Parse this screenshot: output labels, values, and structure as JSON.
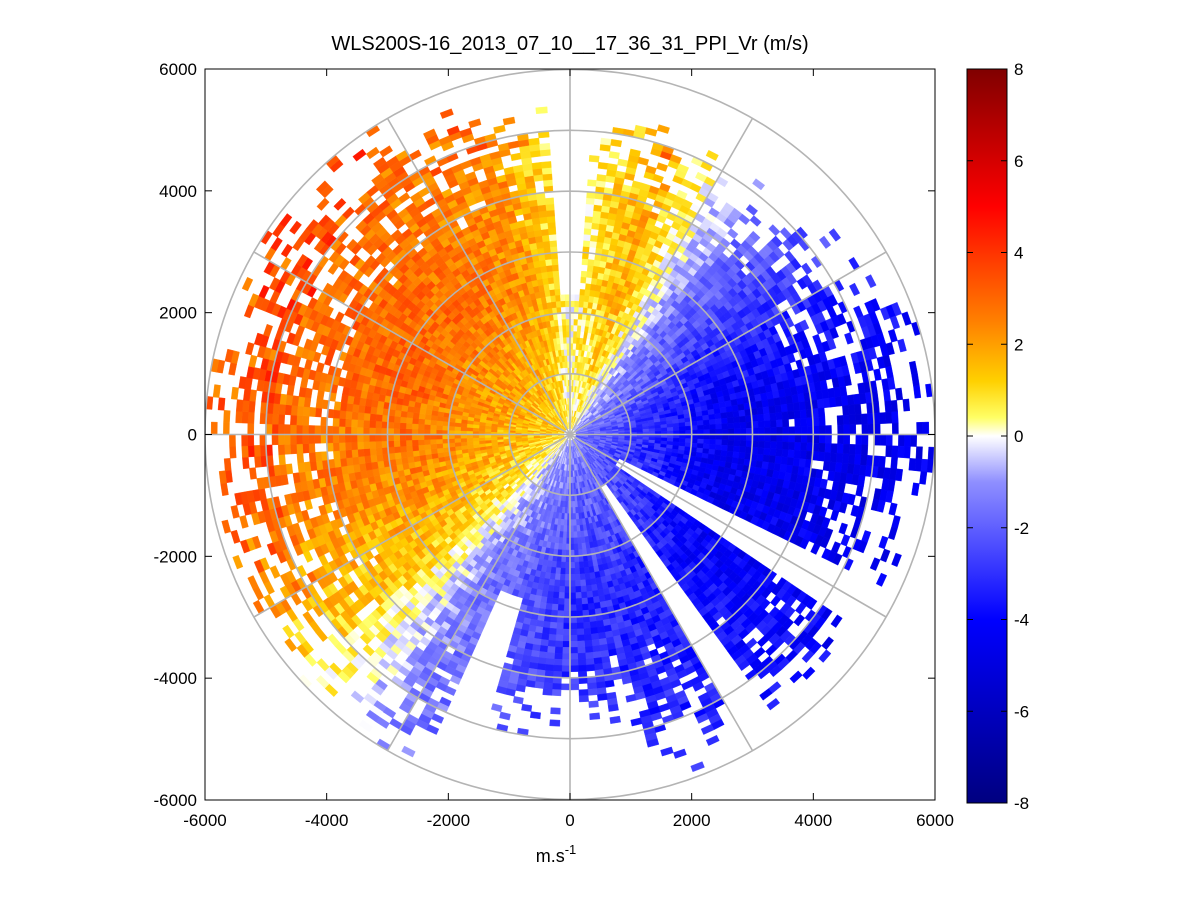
{
  "chart_data": {
    "type": "heatmap",
    "subtype": "polar-ppi",
    "title": "WLS200S-16_2013_07_10__17_36_31_PPI_Vr (m/s)",
    "xlabel": "m.s",
    "xlabel_superscript": "-1",
    "ylabel": "",
    "xlim": [
      -6000,
      6000
    ],
    "ylim": [
      -6000,
      6000
    ],
    "xticks": [
      -6000,
      -4000,
      -2000,
      0,
      2000,
      4000,
      6000
    ],
    "yticks": [
      -6000,
      -4000,
      -2000,
      0,
      2000,
      4000,
      6000
    ],
    "xtick_labels": [
      "-6000",
      "-4000",
      "-2000",
      "0",
      "2000",
      "4000",
      "6000"
    ],
    "ytick_labels": [
      "6000",
      "4000",
      "2000",
      "0",
      "-2000",
      "-4000",
      "-6000"
    ],
    "range_rings": [
      1000,
      2000,
      3000,
      4000,
      5000,
      6000
    ],
    "spoke_step_deg": 30,
    "colorbar": {
      "min": -8,
      "max": 8,
      "ticks": [
        8,
        6,
        4,
        2,
        0,
        -2,
        -4,
        -6,
        -8
      ],
      "tick_labels": [
        "8",
        "6",
        "4",
        "2",
        "0",
        "-2",
        "-4",
        "-6",
        "-8"
      ],
      "colormap": [
        {
          "v": -8,
          "c": "#000080"
        },
        {
          "v": -4,
          "c": "#0000ff"
        },
        {
          "v": -1,
          "c": "#8f8fff"
        },
        {
          "v": 0,
          "c": "#ffffff"
        },
        {
          "v": 0.4,
          "c": "#ffff66"
        },
        {
          "v": 1.2,
          "c": "#ffd000"
        },
        {
          "v": 2.5,
          "c": "#ff8000"
        },
        {
          "v": 5,
          "c": "#ff0000"
        },
        {
          "v": 8,
          "c": "#800000"
        }
      ]
    },
    "velocity_profile_ms": [
      {
        "azimuth_deg": 0,
        "vr": 0.2
      },
      {
        "azimuth_deg": 20,
        "vr": 1.8
      },
      {
        "azimuth_deg": 40,
        "vr": -1.6
      },
      {
        "azimuth_deg": 60,
        "vr": -3.2
      },
      {
        "azimuth_deg": 80,
        "vr": -4.4
      },
      {
        "azimuth_deg": 100,
        "vr": -4.6
      },
      {
        "azimuth_deg": 120,
        "vr": -4.4
      },
      {
        "azimuth_deg": 150,
        "vr": -3.4
      },
      {
        "azimuth_deg": 180,
        "vr": -3.0
      },
      {
        "azimuth_deg": 210,
        "vr": -1.4
      },
      {
        "azimuth_deg": 230,
        "vr": 1.2
      },
      {
        "azimuth_deg": 260,
        "vr": 2.6
      },
      {
        "azimuth_deg": 290,
        "vr": 3.0
      },
      {
        "azimuth_deg": 320,
        "vr": 2.8
      },
      {
        "azimuth_deg": 345,
        "vr": 2.2
      },
      {
        "azimuth_deg": 360,
        "vr": 0.2
      }
    ],
    "data_gaps_deg": [
      {
        "from": -4,
        "to": 4,
        "min_range": 2300
      },
      {
        "from": 117,
        "to": 124,
        "min_range": 900
      },
      {
        "from": 145,
        "to": 149,
        "min_range": 1000
      },
      {
        "from": 197,
        "to": 203,
        "min_range": 2800
      }
    ],
    "max_range_by_sector": [
      {
        "from": 0,
        "to": 20,
        "range": 4700
      },
      {
        "from": 20,
        "to": 45,
        "range": 4600
      },
      {
        "from": 45,
        "to": 65,
        "range": 5000
      },
      {
        "from": 65,
        "to": 100,
        "range": 5900
      },
      {
        "from": 100,
        "to": 125,
        "range": 5200
      },
      {
        "from": 125,
        "to": 165,
        "range": 5400
      },
      {
        "from": 165,
        "to": 200,
        "range": 4400
      },
      {
        "from": 200,
        "to": 240,
        "range": 5600
      },
      {
        "from": 240,
        "to": 300,
        "range": 5800
      },
      {
        "from": 300,
        "to": 330,
        "range": 5600
      },
      {
        "from": 330,
        "to": 360,
        "range": 5200
      }
    ]
  }
}
